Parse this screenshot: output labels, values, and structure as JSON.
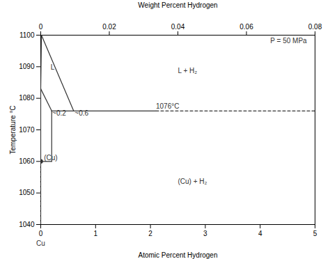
{
  "chart_data": {
    "type": "line",
    "title": "Weight Percent Hydrogen",
    "xlabel": "Atomic Percent Hydrogen",
    "ylabel": "Temperature °C",
    "xlim": [
      0,
      5
    ],
    "ylim": [
      1040,
      1100
    ],
    "xticks": [
      0,
      1,
      2,
      3,
      4,
      5
    ],
    "yticks": [
      1040,
      1050,
      1060,
      1070,
      1080,
      1090,
      1100
    ],
    "x2lim": [
      0,
      0.08
    ],
    "x2ticks": [
      0,
      0.02,
      0.04,
      0.06,
      0.08
    ],
    "color": "#333333",
    "series": [
      {
        "x": [
          0.0,
          0.013
        ],
        "values": [
          1083,
          1100
        ],
        "line_style": "solid"
      },
      {
        "x": [
          0.0,
          0.2
        ],
        "values": [
          1083,
          1076
        ],
        "line_style": "solid"
      },
      {
        "x": [
          0.6,
          0.013
        ],
        "values": [
          1076,
          1100
        ],
        "line_style": "solid"
      },
      {
        "x": [
          0.2,
          2.1
        ],
        "values": [
          1076,
          1076
        ],
        "line_style": "solid"
      },
      {
        "x": [
          2.1,
          5.0
        ],
        "values": [
          1076,
          1076
        ],
        "line_style": "dashed"
      },
      {
        "x": [
          0.0,
          0.0
        ],
        "values": [
          1060,
          1083
        ],
        "line_style": "solid"
      },
      {
        "x": [
          0.2,
          0.2
        ],
        "values": [
          1076,
          1060
        ],
        "line_style": "solid"
      },
      {
        "x": [
          0.0,
          0.2
        ],
        "values": [
          1060,
          1060
        ],
        "line_style": "solid"
      },
      {
        "x": [
          0.0,
          0.0
        ],
        "values": [
          1040,
          1060
        ],
        "line_style": "dashed"
      },
      {
        "type": "scatter",
        "x": [
          0.0
        ],
        "values": [
          1060
        ],
        "marker": "circle"
      }
    ],
    "annotations": [
      {
        "text": "L",
        "x": 0.18,
        "y": 1089
      },
      {
        "text": "L + H₂",
        "x": 2.5,
        "y": 1088
      },
      {
        "text": "(Cu) + H₂",
        "x": 2.5,
        "y": 1053
      },
      {
        "text": "P = 50 MPa",
        "x": 4.85,
        "y": 1097.5
      },
      {
        "text": "1076°C",
        "x": 2.1,
        "y": 1076.8
      },
      {
        "text": "~0.2",
        "x": 0.21,
        "y": 1074.5
      },
      {
        "text": "~0.6",
        "x": 0.62,
        "y": 1074.5
      },
      {
        "text": "(Cu)",
        "x": 0.06,
        "y": 1060.3
      },
      {
        "text": "Cu",
        "x": 0.0,
        "y": 1038.92
      }
    ]
  }
}
